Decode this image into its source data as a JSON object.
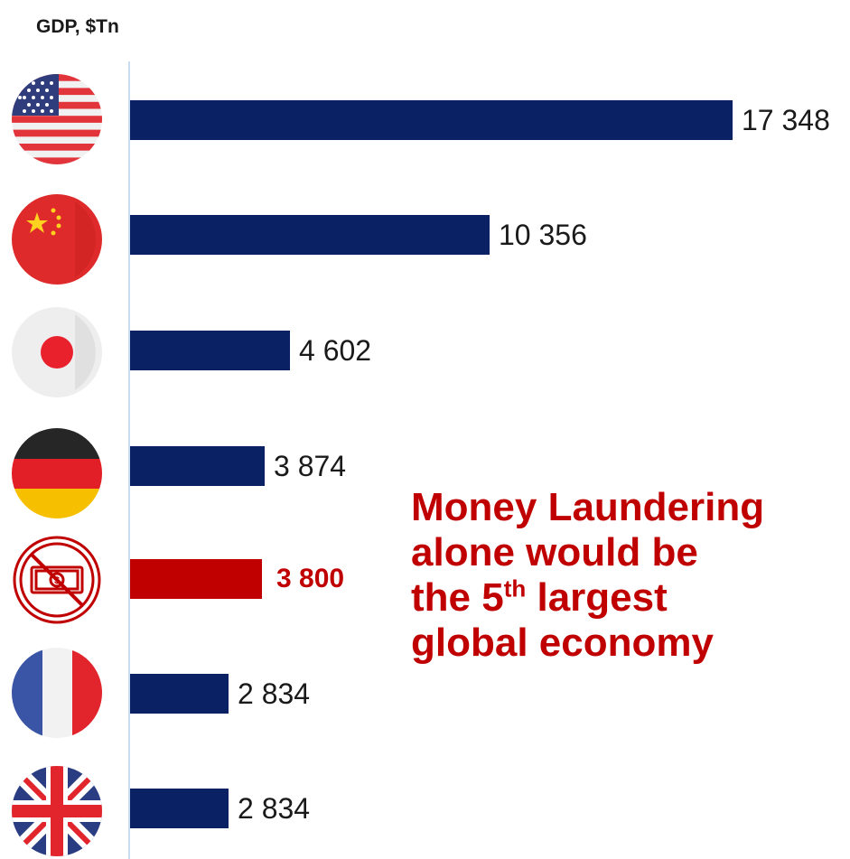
{
  "chart_data": {
    "type": "bar",
    "orientation": "horizontal",
    "title": "GDP, $Tn",
    "categories": [
      "United States",
      "China",
      "Japan",
      "Germany",
      "Money Laundering",
      "France",
      "United Kingdom"
    ],
    "category_icons": [
      "us-flag-icon",
      "china-flag-icon",
      "japan-flag-icon",
      "germany-flag-icon",
      "no-money-icon",
      "france-flag-icon",
      "uk-flag-icon"
    ],
    "values": [
      17348,
      10356,
      4602,
      3874,
      3800,
      2834,
      2834
    ],
    "value_labels": [
      "17 348",
      "10 356",
      "4 602",
      "3 874",
      "3 800",
      "2 834",
      "2 834"
    ],
    "highlight_index": 4,
    "colors": {
      "bar": "#0a2263",
      "highlight": "#c00000",
      "axis": "#c9dcf0"
    },
    "xlim": [
      0,
      17348
    ],
    "grid": false,
    "legend": "none"
  },
  "callout": {
    "line1": "Money Laundering",
    "line2": "alone would be",
    "line3_pre": "the 5",
    "line3_sup": "th",
    "line3_post": " largest",
    "line4": "global economy"
  }
}
